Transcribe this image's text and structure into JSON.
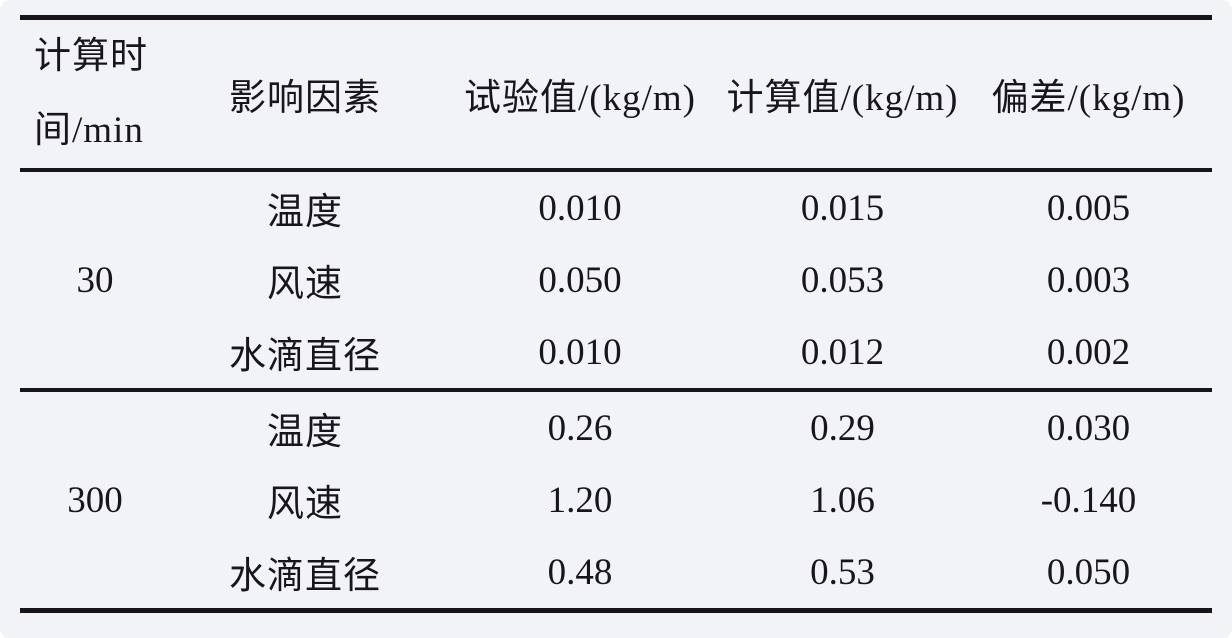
{
  "table": {
    "header": {
      "time_line1": "计算时",
      "time_line2": "间/min",
      "factor": "影响因素",
      "test_value": "试验值/(kg/m)",
      "calc_value": "计算值/(kg/m)",
      "deviation": "偏差/(kg/m)"
    },
    "groups": [
      {
        "time": "30",
        "rows": [
          {
            "factor": "温度",
            "test": "0.010",
            "calc": "0.015",
            "dev": "0.005"
          },
          {
            "factor": "风速",
            "test": "0.050",
            "calc": "0.053",
            "dev": "0.003"
          },
          {
            "factor": "水滴直径",
            "test": "0.010",
            "calc": "0.012",
            "dev": "0.002"
          }
        ]
      },
      {
        "time": "300",
        "rows": [
          {
            "factor": "温度",
            "test": "0.26",
            "calc": "0.29",
            "dev": "0.030"
          },
          {
            "factor": "风速",
            "test": "1.20",
            "calc": "1.06",
            "dev": "-0.140"
          },
          {
            "factor": "水滴直径",
            "test": "0.48",
            "calc": "0.53",
            "dev": "0.050"
          }
        ]
      }
    ],
    "colors": {
      "background": "#f2f3f6",
      "rule": "#17141f",
      "text": "#18151f"
    }
  }
}
